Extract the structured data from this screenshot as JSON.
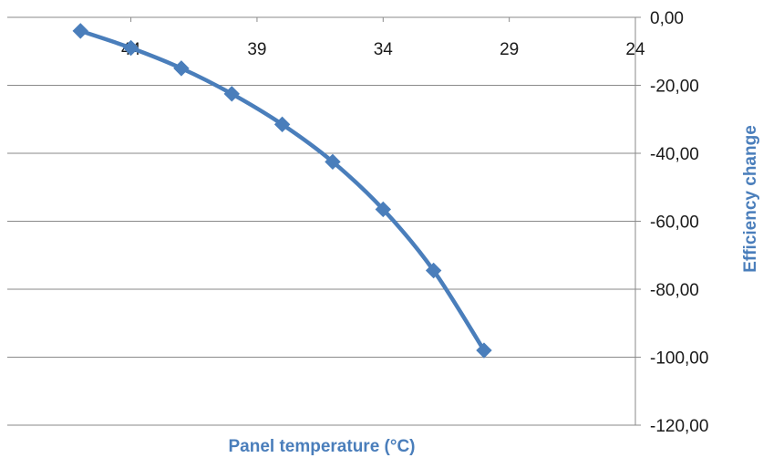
{
  "chart_data": {
    "type": "line",
    "xlabel": "Panel temperature (°C)",
    "ylabel": "Efficiency change",
    "x_axis": {
      "reversed": true,
      "xlim": [
        24,
        48.9
      ],
      "ticks": [
        44,
        39,
        34,
        29,
        24
      ]
    },
    "y_axis": {
      "position": "right",
      "ylim": [
        -120,
        0
      ],
      "ticks": [
        0,
        -20,
        -40,
        -60,
        -80,
        -100,
        -120
      ],
      "tick_labels": [
        "0,00",
        "-20,00",
        "-40,00",
        "-60,00",
        "-80,00",
        "-100,00",
        "-120,00"
      ]
    },
    "grid": {
      "horizontal": true,
      "vertical": false
    },
    "legend": "none",
    "series": [
      {
        "color": "#4a7ebb",
        "marker": "diamond",
        "smooth": true,
        "points": [
          {
            "x": 46,
            "y": -4
          },
          {
            "x": 44,
            "y": -9
          },
          {
            "x": 42,
            "y": -15
          },
          {
            "x": 40,
            "y": -22.5
          },
          {
            "x": 38,
            "y": -31.5
          },
          {
            "x": 36,
            "y": -42.5
          },
          {
            "x": 34,
            "y": -56.5
          },
          {
            "x": 32,
            "y": -74.5
          },
          {
            "x": 30,
            "y": -98
          }
        ]
      }
    ]
  }
}
